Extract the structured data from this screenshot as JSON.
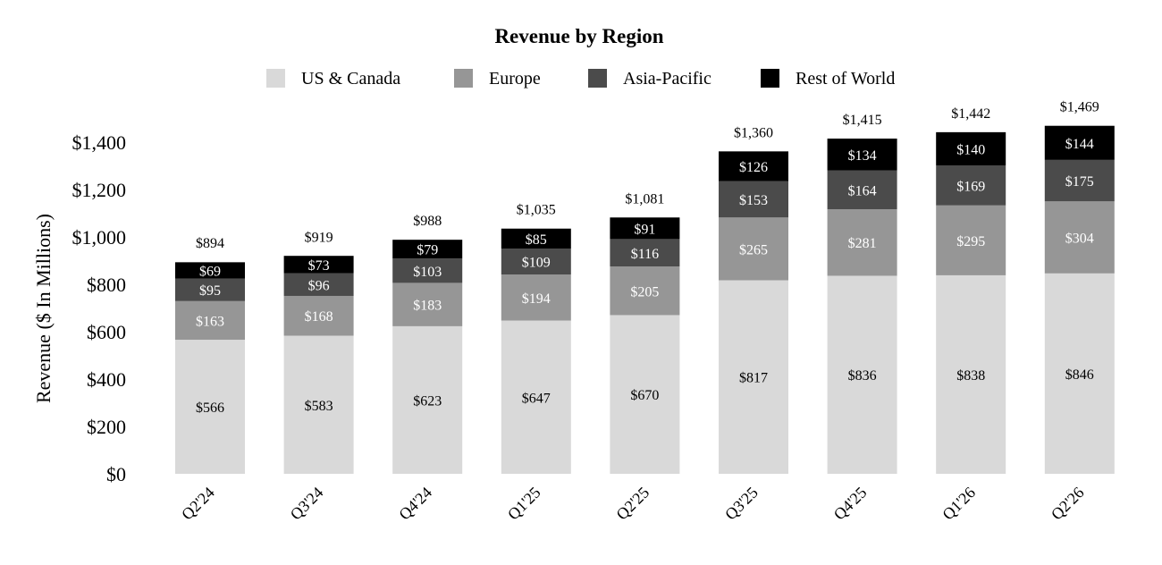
{
  "chart_data": {
    "type": "bar",
    "stacked": true,
    "title": "Revenue by Region",
    "ylabel": "Revenue ($ In Millions)",
    "xlabel": "",
    "ylim": [
      0,
      1400
    ],
    "yticks": [
      0,
      200,
      400,
      600,
      800,
      1000,
      1200,
      1400
    ],
    "ytick_labels": [
      "$0",
      "$200",
      "$400",
      "$600",
      "$800",
      "$1,000",
      "$1,200",
      "$1,400"
    ],
    "grid": false,
    "legend_position": "top-center",
    "categories": [
      "Q2'24",
      "Q3'24",
      "Q4'24",
      "Q1'25",
      "Q2'25",
      "Q3'25",
      "Q4'25",
      "Q1'26",
      "Q2'26"
    ],
    "series": [
      {
        "name": "US & Canada",
        "color": "#d9d9d9",
        "label_color": "#000000",
        "values": [
          566,
          583,
          623,
          647,
          670,
          817,
          836,
          838,
          846
        ],
        "labels": [
          "$566",
          "$583",
          "$623",
          "$647",
          "$670",
          "$817",
          "$836",
          "$838",
          "$846"
        ]
      },
      {
        "name": "Europe",
        "color": "#969696",
        "label_color": "#ffffff",
        "values": [
          163,
          168,
          183,
          194,
          205,
          265,
          281,
          295,
          304
        ],
        "labels": [
          "$163",
          "$168",
          "$183",
          "$194",
          "$205",
          "$265",
          "$281",
          "$295",
          "$304"
        ]
      },
      {
        "name": "Asia-Pacific",
        "color": "#4b4b4b",
        "label_color": "#ffffff",
        "values": [
          95,
          96,
          103,
          109,
          116,
          153,
          164,
          169,
          175
        ],
        "labels": [
          "$95",
          "$96",
          "$103",
          "$109",
          "$116",
          "$153",
          "$164",
          "$169",
          "$175"
        ]
      },
      {
        "name": "Rest of World",
        "color": "#000000",
        "label_color": "#ffffff",
        "values": [
          69,
          73,
          79,
          85,
          91,
          126,
          134,
          140,
          144
        ],
        "labels": [
          "$69",
          "$73",
          "$79",
          "$85",
          "$91",
          "$126",
          "$134",
          "$140",
          "$144"
        ]
      }
    ],
    "totals": [
      894,
      919,
      988,
      1035,
      1081,
      1360,
      1415,
      1442,
      1469
    ],
    "total_labels": [
      "$894",
      "$919",
      "$988",
      "$1,035",
      "$1,081",
      "$1,360",
      "$1,415",
      "$1,442",
      "$1,469"
    ]
  }
}
